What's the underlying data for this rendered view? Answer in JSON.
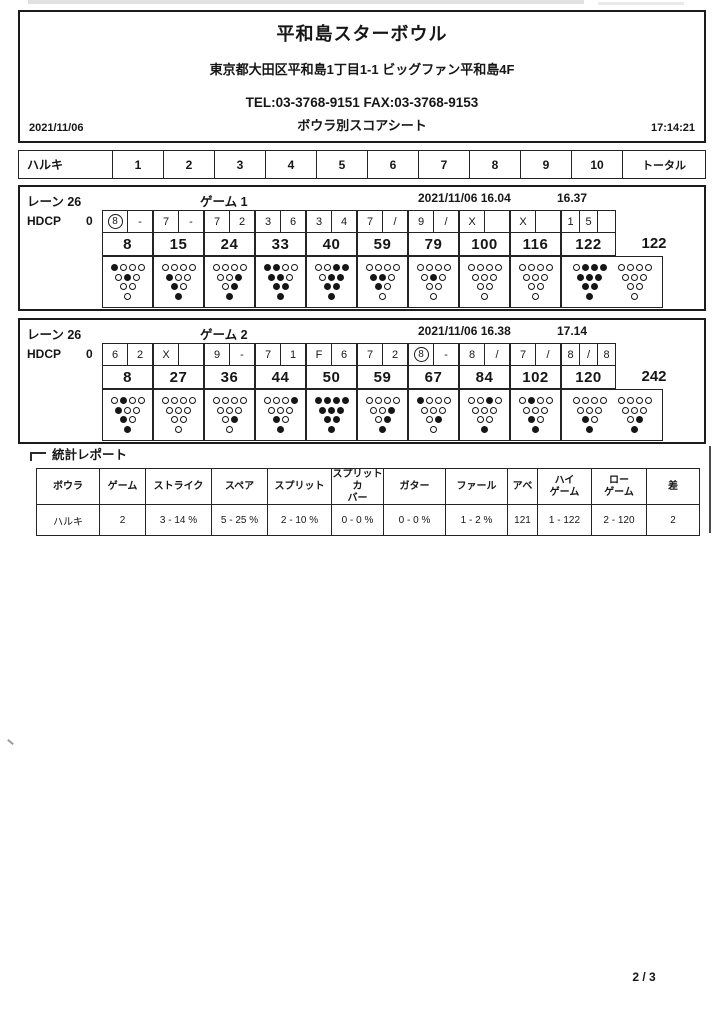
{
  "header": {
    "venue": "平和島スターボウル",
    "address": "東京都大田区平和島1丁目1-1  ビッグファン平和島4F",
    "tel_fax": "TEL:03-3768-9151 FAX:03-3768-9153",
    "date": "2021/11/06",
    "sheet_title": "ボウラ別スコアシート",
    "time": "17:14:21"
  },
  "frame_header": {
    "player": "ハルキ",
    "frames": [
      "1",
      "2",
      "3",
      "4",
      "5",
      "6",
      "7",
      "8",
      "9",
      "10"
    ],
    "total_label": "トータル"
  },
  "games": [
    {
      "lane_label": "レーン  26",
      "game_label": "ゲーム  1",
      "datetime": "2021/11/06  16.04",
      "end_time": "16.37",
      "hdcp_label": "HDCP",
      "hdcp_value": "0",
      "total": "122",
      "frames": [
        {
          "balls": [
            {
              "v": "8",
              "circled": true
            },
            "-"
          ],
          "cum": "8",
          "pins": [
            [
              1,
              0,
              0,
              0
            ],
            [
              0,
              1,
              0
            ],
            [
              0,
              0
            ],
            [
              0
            ]
          ]
        },
        {
          "balls": [
            "7",
            "-"
          ],
          "cum": "15",
          "pins": [
            [
              0,
              0,
              0,
              0
            ],
            [
              1,
              0,
              0
            ],
            [
              1,
              0
            ],
            [
              1
            ]
          ]
        },
        {
          "balls": [
            "7",
            "2"
          ],
          "cum": "24",
          "pins": [
            [
              0,
              0,
              0,
              0
            ],
            [
              0,
              0,
              1
            ],
            [
              0,
              1
            ],
            [
              1
            ]
          ]
        },
        {
          "balls": [
            "3",
            "6"
          ],
          "cum": "33",
          "pins": [
            [
              1,
              1,
              0,
              0
            ],
            [
              1,
              1,
              0
            ],
            [
              1,
              1
            ],
            [
              1
            ]
          ]
        },
        {
          "balls": [
            "3",
            "4"
          ],
          "cum": "40",
          "pins": [
            [
              0,
              0,
              1,
              1
            ],
            [
              0,
              1,
              1
            ],
            [
              1,
              1
            ],
            [
              1
            ]
          ]
        },
        {
          "balls": [
            "7",
            "/"
          ],
          "cum": "59",
          "pins": [
            [
              0,
              0,
              0,
              0
            ],
            [
              1,
              1,
              0
            ],
            [
              1,
              0
            ],
            [
              0
            ]
          ]
        },
        {
          "balls": [
            "9",
            "/"
          ],
          "cum": "79",
          "pins": [
            [
              0,
              0,
              0,
              0
            ],
            [
              0,
              1,
              0
            ],
            [
              0,
              0
            ],
            [
              0
            ]
          ]
        },
        {
          "balls": [
            "X",
            ""
          ],
          "cum": "100",
          "pins": [
            [
              0,
              0,
              0,
              0
            ],
            [
              0,
              0,
              0
            ],
            [
              0,
              0
            ],
            [
              0
            ]
          ]
        },
        {
          "balls": [
            "X",
            ""
          ],
          "cum": "116",
          "pins": [
            [
              0,
              0,
              0,
              0
            ],
            [
              0,
              0,
              0
            ],
            [
              0,
              0
            ],
            [
              0
            ]
          ]
        },
        {
          "balls": [
            "1",
            "5",
            ""
          ],
          "cum": "122",
          "pins": [
            [
              0,
              1,
              1,
              1
            ],
            [
              1,
              1,
              1
            ],
            [
              1,
              1
            ],
            [
              1
            ]
          ],
          "pins2": [
            [
              0,
              0,
              0,
              0
            ],
            [
              0,
              0,
              0
            ],
            [
              0,
              0
            ],
            [
              0
            ]
          ]
        }
      ]
    },
    {
      "lane_label": "レーン  26",
      "game_label": "ゲーム  2",
      "datetime": "2021/11/06  16.38",
      "end_time": "17.14",
      "hdcp_label": "HDCP",
      "hdcp_value": "0",
      "total": "242",
      "frames": [
        {
          "balls": [
            "6",
            "2"
          ],
          "cum": "8",
          "pins": [
            [
              0,
              1,
              0,
              0
            ],
            [
              1,
              0,
              0
            ],
            [
              1,
              0
            ],
            [
              1
            ]
          ]
        },
        {
          "balls": [
            "X",
            ""
          ],
          "cum": "27",
          "pins": [
            [
              0,
              0,
              0,
              0
            ],
            [
              0,
              0,
              0
            ],
            [
              0,
              0
            ],
            [
              0
            ]
          ]
        },
        {
          "balls": [
            "9",
            "-"
          ],
          "cum": "36",
          "pins": [
            [
              0,
              0,
              0,
              0
            ],
            [
              0,
              0,
              0
            ],
            [
              0,
              1
            ],
            [
              0
            ]
          ]
        },
        {
          "balls": [
            "7",
            "1"
          ],
          "cum": "44",
          "pins": [
            [
              0,
              0,
              0,
              1
            ],
            [
              0,
              0,
              0
            ],
            [
              1,
              0
            ],
            [
              1
            ]
          ]
        },
        {
          "balls": [
            "F",
            "6"
          ],
          "cum": "50",
          "pins": [
            [
              1,
              1,
              1,
              1
            ],
            [
              1,
              1,
              1
            ],
            [
              1,
              1
            ],
            [
              1
            ]
          ]
        },
        {
          "balls": [
            "7",
            "2"
          ],
          "cum": "59",
          "pins": [
            [
              0,
              0,
              0,
              0
            ],
            [
              0,
              0,
              1
            ],
            [
              0,
              1
            ],
            [
              1
            ]
          ]
        },
        {
          "balls": [
            {
              "v": "8",
              "circled": true
            },
            "-"
          ],
          "cum": "67",
          "pins": [
            [
              1,
              0,
              0,
              0
            ],
            [
              0,
              0,
              0
            ],
            [
              0,
              1
            ],
            [
              0
            ]
          ]
        },
        {
          "balls": [
            "8",
            "/"
          ],
          "cum": "84",
          "pins": [
            [
              0,
              0,
              1,
              0
            ],
            [
              0,
              0,
              0
            ],
            [
              0,
              0
            ],
            [
              1
            ]
          ]
        },
        {
          "balls": [
            "7",
            "/"
          ],
          "cum": "102",
          "pins": [
            [
              0,
              1,
              0,
              0
            ],
            [
              0,
              0,
              0
            ],
            [
              1,
              0
            ],
            [
              1
            ]
          ]
        },
        {
          "balls": [
            "8",
            "/",
            "8"
          ],
          "cum": "120",
          "pins": [
            [
              0,
              0,
              0,
              0
            ],
            [
              0,
              0,
              0
            ],
            [
              1,
              0
            ],
            [
              1
            ]
          ],
          "pins2": [
            [
              0,
              0,
              0,
              0
            ],
            [
              0,
              0,
              0
            ],
            [
              0,
              1
            ],
            [
              1
            ]
          ]
        }
      ]
    }
  ],
  "stats": {
    "title": "統計レポート",
    "headers": [
      "ボウラ",
      "ゲーム",
      "ストライク",
      "スペア",
      "スプリット",
      "スプリットカ\nバー",
      "ガター",
      "ファール",
      "アベ",
      "ハイ\nゲーム",
      "ロー\nゲーム",
      "差"
    ],
    "rows": [
      [
        "ハルキ",
        "2",
        "3 - 14 %",
        "5 - 25 %",
        "2 - 10 %",
        "0 - 0 %",
        "0 - 0 %",
        "1 - 2 %",
        "121",
        "1 - 122",
        "2 - 120",
        "2"
      ]
    ]
  },
  "footer": {
    "page": "2 / 3"
  }
}
